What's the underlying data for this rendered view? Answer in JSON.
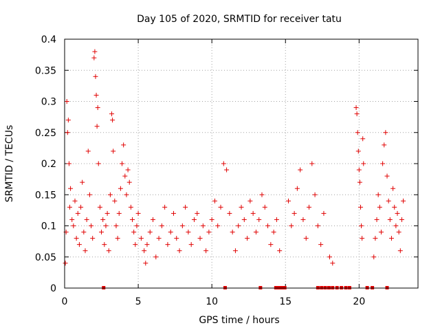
{
  "chart_data": {
    "type": "scatter",
    "title": "Day 105 of 2020, SRMTID for receiver tatu",
    "xlabel": "GPS time / hours",
    "ylabel": "SRMTID / TECUs",
    "xlim": [
      0,
      24
    ],
    "ylim": [
      0,
      0.4
    ],
    "xticks": [
      0,
      5,
      10,
      15,
      20
    ],
    "xtick_labels": [
      "0",
      "5",
      "10",
      "15",
      "20"
    ],
    "yticks": [
      0,
      0.05,
      0.1,
      0.15,
      0.2,
      0.25,
      0.3,
      0.35,
      0.4
    ],
    "ytick_labels": [
      "0",
      "0.05",
      "0.1",
      "0.15",
      "0.2",
      "0.25",
      "0.3",
      "0.35",
      "0.4"
    ],
    "grid": true,
    "marker": "+",
    "color": "#e00000",
    "series": [
      {
        "name": "SRMTID",
        "points": [
          [
            0.05,
            0.04
          ],
          [
            0.1,
            0.09
          ],
          [
            0.15,
            0.3
          ],
          [
            0.2,
            0.25
          ],
          [
            0.25,
            0.27
          ],
          [
            0.3,
            0.2
          ],
          [
            0.35,
            0.13
          ],
          [
            0.4,
            0.16
          ],
          [
            0.5,
            0.11
          ],
          [
            0.6,
            0.1
          ],
          [
            0.7,
            0.14
          ],
          [
            0.8,
            0.08
          ],
          [
            0.9,
            0.12
          ],
          [
            1.0,
            0.07
          ],
          [
            1.1,
            0.13
          ],
          [
            1.2,
            0.17
          ],
          [
            1.3,
            0.09
          ],
          [
            1.4,
            0.06
          ],
          [
            1.5,
            0.11
          ],
          [
            1.6,
            0.22
          ],
          [
            1.7,
            0.15
          ],
          [
            1.8,
            0.1
          ],
          [
            1.9,
            0.08
          ],
          [
            2.0,
            0.37
          ],
          [
            2.05,
            0.38
          ],
          [
            2.1,
            0.34
          ],
          [
            2.15,
            0.31
          ],
          [
            2.2,
            0.26
          ],
          [
            2.25,
            0.29
          ],
          [
            2.3,
            0.2
          ],
          [
            2.4,
            0.13
          ],
          [
            2.5,
            0.09
          ],
          [
            2.6,
            0.11
          ],
          [
            2.7,
            0.07
          ],
          [
            2.8,
            0.1
          ],
          [
            2.9,
            0.12
          ],
          [
            3.0,
            0.06
          ],
          [
            3.1,
            0.15
          ],
          [
            3.2,
            0.28
          ],
          [
            3.25,
            0.27
          ],
          [
            3.3,
            0.22
          ],
          [
            3.4,
            0.14
          ],
          [
            3.5,
            0.1
          ],
          [
            3.6,
            0.08
          ],
          [
            3.7,
            0.12
          ],
          [
            3.8,
            0.16
          ],
          [
            3.9,
            0.2
          ],
          [
            4.0,
            0.23
          ],
          [
            4.1,
            0.18
          ],
          [
            4.2,
            0.15
          ],
          [
            4.3,
            0.19
          ],
          [
            4.4,
            0.17
          ],
          [
            4.5,
            0.13
          ],
          [
            4.6,
            0.11
          ],
          [
            4.7,
            0.09
          ],
          [
            4.8,
            0.07
          ],
          [
            4.9,
            0.1
          ],
          [
            5.0,
            0.12
          ],
          [
            5.2,
            0.08
          ],
          [
            5.4,
            0.06
          ],
          [
            5.5,
            0.04
          ],
          [
            5.6,
            0.07
          ],
          [
            5.8,
            0.09
          ],
          [
            6.0,
            0.11
          ],
          [
            6.2,
            0.05
          ],
          [
            6.4,
            0.08
          ],
          [
            6.6,
            0.1
          ],
          [
            6.8,
            0.13
          ],
          [
            7.0,
            0.07
          ],
          [
            7.2,
            0.09
          ],
          [
            7.4,
            0.12
          ],
          [
            7.6,
            0.08
          ],
          [
            7.8,
            0.06
          ],
          [
            8.0,
            0.1
          ],
          [
            8.2,
            0.13
          ],
          [
            8.4,
            0.09
          ],
          [
            8.6,
            0.07
          ],
          [
            8.8,
            0.11
          ],
          [
            9.0,
            0.12
          ],
          [
            9.2,
            0.08
          ],
          [
            9.4,
            0.1
          ],
          [
            9.6,
            0.06
          ],
          [
            9.8,
            0.09
          ],
          [
            10.0,
            0.11
          ],
          [
            10.2,
            0.14
          ],
          [
            10.4,
            0.1
          ],
          [
            10.6,
            0.13
          ],
          [
            10.8,
            0.2
          ],
          [
            11.0,
            0.19
          ],
          [
            11.2,
            0.12
          ],
          [
            11.4,
            0.09
          ],
          [
            11.6,
            0.06
          ],
          [
            11.8,
            0.1
          ],
          [
            12.0,
            0.13
          ],
          [
            12.2,
            0.11
          ],
          [
            12.4,
            0.08
          ],
          [
            12.6,
            0.14
          ],
          [
            12.8,
            0.12
          ],
          [
            13.0,
            0.09
          ],
          [
            13.2,
            0.11
          ],
          [
            13.4,
            0.15
          ],
          [
            13.6,
            0.13
          ],
          [
            13.8,
            0.1
          ],
          [
            14.0,
            0.07
          ],
          [
            14.2,
            0.09
          ],
          [
            14.4,
            0.11
          ],
          [
            14.6,
            0.06
          ],
          [
            15.2,
            0.14
          ],
          [
            15.4,
            0.1
          ],
          [
            15.6,
            0.12
          ],
          [
            15.8,
            0.16
          ],
          [
            16.0,
            0.19
          ],
          [
            16.2,
            0.11
          ],
          [
            16.4,
            0.08
          ],
          [
            16.6,
            0.13
          ],
          [
            16.8,
            0.2
          ],
          [
            17.0,
            0.15
          ],
          [
            17.2,
            0.1
          ],
          [
            17.4,
            0.07
          ],
          [
            17.6,
            0.12
          ],
          [
            18.0,
            0.05
          ],
          [
            18.2,
            0.04
          ],
          [
            19.8,
            0.29
          ],
          [
            19.85,
            0.28
          ],
          [
            19.9,
            0.25
          ],
          [
            19.95,
            0.22
          ],
          [
            20.0,
            0.19
          ],
          [
            20.05,
            0.17
          ],
          [
            20.1,
            0.13
          ],
          [
            20.15,
            0.1
          ],
          [
            20.2,
            0.08
          ],
          [
            20.25,
            0.24
          ],
          [
            20.3,
            0.2
          ],
          [
            21.0,
            0.05
          ],
          [
            21.1,
            0.08
          ],
          [
            21.2,
            0.11
          ],
          [
            21.3,
            0.15
          ],
          [
            21.4,
            0.13
          ],
          [
            21.5,
            0.09
          ],
          [
            21.6,
            0.2
          ],
          [
            21.7,
            0.23
          ],
          [
            21.8,
            0.25
          ],
          [
            21.9,
            0.18
          ],
          [
            22.0,
            0.14
          ],
          [
            22.1,
            0.11
          ],
          [
            22.2,
            0.08
          ],
          [
            22.3,
            0.16
          ],
          [
            22.4,
            0.13
          ],
          [
            22.5,
            0.1
          ],
          [
            22.6,
            0.12
          ],
          [
            22.7,
            0.09
          ],
          [
            22.8,
            0.06
          ],
          [
            22.9,
            0.11
          ],
          [
            23.0,
            0.14
          ]
        ]
      }
    ],
    "zero_markers_x": [
      2.65,
      10.9,
      13.3,
      14.35,
      14.5,
      14.65,
      14.8,
      14.95,
      17.2,
      17.45,
      17.7,
      17.95,
      18.2,
      18.5,
      18.8,
      19.1,
      19.35,
      20.55,
      20.9,
      21.9
    ]
  }
}
